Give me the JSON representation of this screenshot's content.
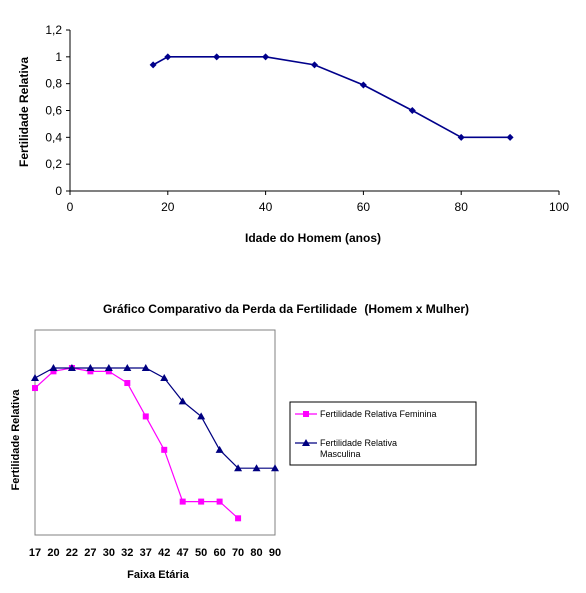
{
  "chart_data": [
    {
      "type": "line",
      "title": "",
      "xlabel": "Idade do Homem (anos)",
      "ylabel": "Fertilidade Relativa",
      "xlim": [
        0,
        100
      ],
      "ylim": [
        0,
        1.2
      ],
      "x_ticks": [
        "0",
        "20",
        "40",
        "60",
        "80",
        "100"
      ],
      "y_ticks": [
        "0",
        "0,2",
        "0,4",
        "0,6",
        "0,8",
        "1",
        "1,2"
      ],
      "grid": false,
      "legend": "none",
      "series": [
        {
          "color": "#00008b",
          "marker": "diamond",
          "x": [
            17,
            20,
            30,
            40,
            50,
            60,
            70,
            80,
            90
          ],
          "y": [
            0.94,
            1.0,
            1.0,
            1.0,
            0.94,
            0.79,
            0.6,
            0.4,
            0.4
          ]
        }
      ]
    },
    {
      "type": "line",
      "title": "Gráfico Comparativo da Perda da Fertilidade",
      "title_suffix": "(Homem x Mulher)",
      "xlabel": "Faixa Etária",
      "ylabel": "Fertilidade Relativa",
      "categories": [
        "17",
        "20",
        "22",
        "27",
        "30",
        "32",
        "37",
        "42",
        "47",
        "50",
        "60",
        "70",
        "80",
        "90"
      ],
      "ylim": [
        0,
        1.05
      ],
      "grid": false,
      "legend": "right",
      "series": [
        {
          "name": "Fertilidade Relativa Feminina",
          "color": "#ff00ff",
          "marker": "square",
          "values": [
            0.88,
            0.98,
            1.0,
            0.98,
            0.98,
            0.91,
            0.71,
            0.51,
            0.2,
            0.2,
            0.2,
            0.1,
            null,
            null
          ]
        },
        {
          "name": "Fertilidade Relativa Masculina",
          "color": "#000080",
          "marker": "triangle",
          "values": [
            0.94,
            1.0,
            1.0,
            1.0,
            1.0,
            1.0,
            1.0,
            0.94,
            0.8,
            0.71,
            0.51,
            0.4,
            0.4,
            0.4
          ]
        }
      ]
    }
  ]
}
